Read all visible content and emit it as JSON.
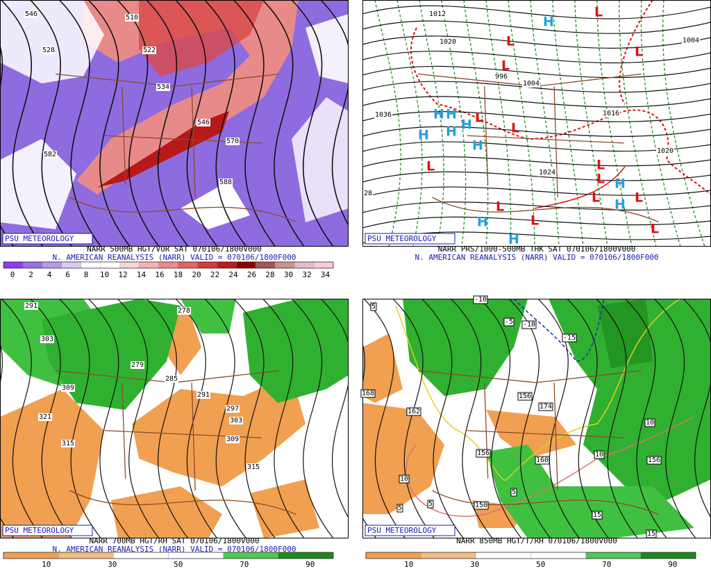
{
  "panels": [
    {
      "branding": "PSU METEOROLOGY",
      "product": "NARR 500MB HGT/VOR SAT 070106/1800V000",
      "valid": "N. AMERICAN REANALYSIS (NARR) VALID = 070106/1800F000",
      "colorbar_labels": [
        0,
        2,
        4,
        6,
        8,
        10,
        12,
        14,
        16,
        18,
        20,
        22,
        24,
        26,
        28,
        30,
        32,
        34
      ],
      "colorbar_colors": [
        "#8a3ff0",
        "#9a70e6",
        "#b69ce8",
        "#d8cbf3",
        "#ffffff",
        "#ffffff",
        "#f6d6d6",
        "#f0b2b2",
        "#e98c8c",
        "#e06464",
        "#d23c3c",
        "#ba1c1c",
        "#8c0000",
        "#a45454",
        "#c89494",
        "#e0bcc4",
        "#f4ccd6"
      ],
      "map_labels": [
        "546",
        "510",
        "528",
        "522",
        "534",
        "546",
        "570",
        "582",
        "588"
      ]
    },
    {
      "branding": "PSU METEOROLOGY",
      "product": "NARR PRS/1000-500MB THK SAT 070106/1800V000",
      "valid": "N. AMERICAN REANALYSIS (NARR) VALID = 070106/1800F000",
      "map_labels": [
        "1012",
        "1020",
        "1004",
        "996",
        "1004",
        "1036",
        "1016",
        "1020",
        "1024",
        "28"
      ],
      "highs": [
        "H",
        "H",
        "H",
        "H",
        "H",
        "H",
        "H",
        "H",
        "H",
        "H",
        "H"
      ],
      "lows": [
        "L",
        "L",
        "L",
        "L",
        "L",
        "L",
        "L",
        "L",
        "L",
        "L",
        "L",
        "L",
        "L",
        "L"
      ]
    },
    {
      "branding": "PSU METEOROLOGY",
      "product": "NARR 700MB HGT/RH SAT 070106/1800V000",
      "valid": "N. AMERICAN REANALYSIS (NARR) VALID = 070106/1800F000",
      "colorbar_labels": [
        10,
        30,
        50,
        70,
        90
      ],
      "colorbar_colors": [
        "#f0a050",
        "#f4bc80",
        "#ffffff",
        "#ffffff",
        "#50c850",
        "#1e8a1e"
      ],
      "map_labels": [
        "291",
        "278",
        "303",
        "279",
        "285",
        "291",
        "297",
        "303",
        "309",
        "315",
        "309",
        "321",
        "315"
      ]
    },
    {
      "branding": "PSU METEOROLOGY",
      "product": "NARR 850MB HGT/T/RH 070106/1800V000",
      "valid": "",
      "colorbar_labels": [
        10,
        30,
        50,
        70,
        90
      ],
      "colorbar_colors": [
        "#f0a050",
        "#f4bc80",
        "#ffffff",
        "#ffffff",
        "#50c850",
        "#1e8a1e"
      ],
      "map_labels": [
        "5",
        "-10",
        "-5",
        "-10",
        "-15",
        "168",
        "162",
        "156",
        "150",
        "174",
        "156",
        "160",
        "156",
        "10",
        "10",
        "10",
        "5",
        "5",
        "5",
        "15",
        "15"
      ]
    }
  ]
}
